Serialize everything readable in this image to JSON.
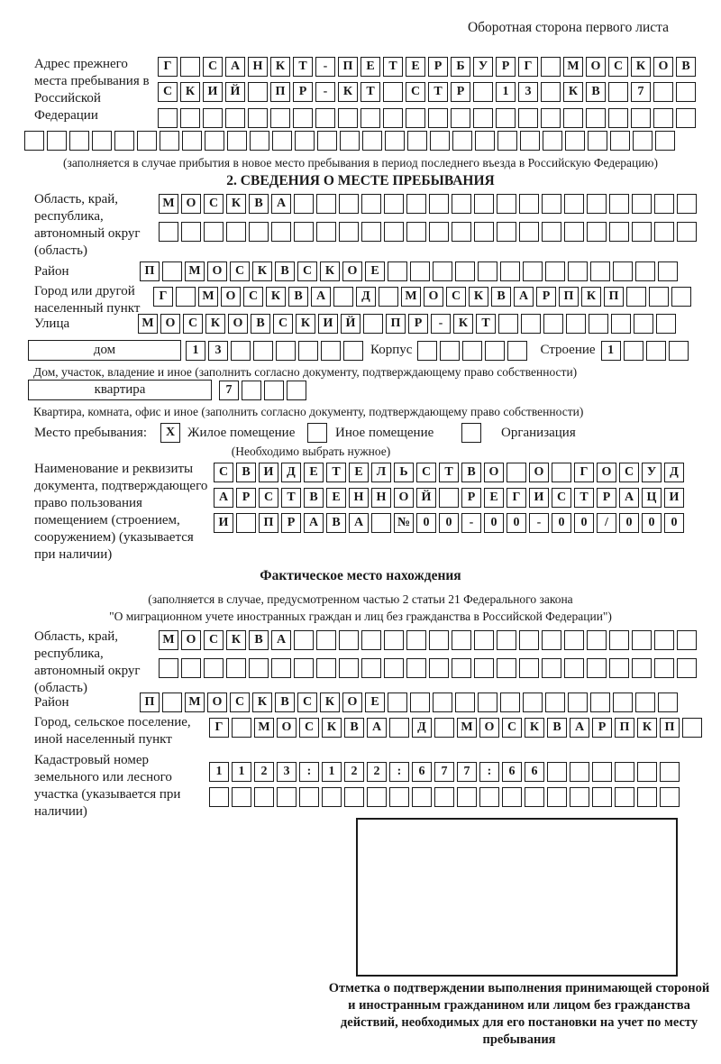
{
  "header": {
    "note": "Оборотная сторона первого листа"
  },
  "prev_address": {
    "label": "Адрес прежнего места пребывания в Российской Федерации",
    "line1": {
      "n": 24,
      "text": "Г САНКТ-ПЕТЕРБУРГ МОСКОВ"
    },
    "line2": {
      "n": 24,
      "text": "СКИЙ ПР-КТ СТР 13 КВ 7"
    },
    "line3": {
      "n": 24,
      "text": ""
    },
    "line4": {
      "n": 29,
      "text": ""
    },
    "caption": "(заполняется в случае прибытия в новое место пребывания в период последнего въезда в Российскую Федерацию)"
  },
  "section2": {
    "title": "2. СВЕДЕНИЯ О МЕСТЕ ПРЕБЫВАНИЯ",
    "region": {
      "label": "Область, край, республика, автономный округ (область)",
      "line1": {
        "n": 24,
        "text": "МОСКВА"
      },
      "line2": {
        "n": 24,
        "text": ""
      }
    },
    "district": {
      "label": "Район",
      "line1": {
        "n": 24,
        "text": "П МОСКВСКОЕ"
      }
    },
    "city": {
      "label": "Город или другой населенный пункт",
      "line1": {
        "n": 24,
        "text": "Г МОСКВА Д МОСКВАРПКП"
      }
    },
    "street": {
      "label": "Улица",
      "line1": {
        "n": 24,
        "text": "МОСКОВСКИЙ ПР-КТ"
      }
    },
    "house": {
      "type_label": "дом",
      "cells": {
        "n": 8,
        "text": "13"
      },
      "korpus_label": "Корпус",
      "korpus_cells": {
        "n": 5,
        "text": ""
      },
      "stroenie_label": "Строение",
      "stroenie_cells": {
        "n": 4,
        "text": "1"
      },
      "caption": "Дом, участок, владение и иное (заполнить согласно документу, подтверждающему право собственности)"
    },
    "apartment": {
      "type_label": "квартира",
      "cells": {
        "n": 4,
        "text": "7"
      },
      "caption": "Квартира, комната, офис и иное (заполнить согласно документу, подтверждающему право собственности)"
    },
    "stay_type": {
      "label": "Место пребывания:",
      "options": [
        {
          "label": "Жилое помещение",
          "mark": "X"
        },
        {
          "label": "Иное помещение",
          "mark": ""
        },
        {
          "label": "Организация",
          "mark": ""
        }
      ],
      "note": "(Необходимо выбрать нужное)"
    },
    "document": {
      "label": "Наименование и реквизиты документа, подтверждающего право пользования помещением (строением, сооружением) (указывается при наличии)",
      "line1": {
        "n": 21,
        "text": "СВИДЕТЕЛЬСТВО О ГОСУД"
      },
      "line2": {
        "n": 21,
        "text": "АРСТВЕННОЙ РЕГИСТРАЦИ"
      },
      "line3": {
        "n": 21,
        "text": "И ПРАВА №00-00-00/000"
      }
    }
  },
  "actual_location": {
    "title": "Фактическое место нахождения",
    "caption_line1": "(заполняется в случае, предусмотренном частью 2 статьи 21 Федерального закона",
    "caption_line2": "\"О миграционном учете иностранных граждан и лиц без гражданства в Российской Федерации\")",
    "region": {
      "label": "Область, край, республика, автономный округ (область)",
      "line1": {
        "n": 24,
        "text": "МОСКВА"
      },
      "line2": {
        "n": 24,
        "text": ""
      }
    },
    "district": {
      "label": "Район",
      "line1": {
        "n": 24,
        "text": "П МОСКВСКОЕ"
      }
    },
    "city": {
      "label": "Город, сельское поселение, иной населенный пункт",
      "line1": {
        "n": 22,
        "text": "Г МОСКВА Д МОСКВАРПКП"
      }
    },
    "cadastre": {
      "label": "Кадастровый номер земельного или лесного участка (указывается при наличии)",
      "line1": {
        "n": 21,
        "text": "1123:122:677:66"
      },
      "line2": {
        "n": 21,
        "text": ""
      }
    },
    "stamp_caption": "Отметка о подтверждении выполнения принимающей стороной и иностранным гражданином или лицом без гражданства действий, необходимых для его постановки на учет по месту пребывания"
  }
}
